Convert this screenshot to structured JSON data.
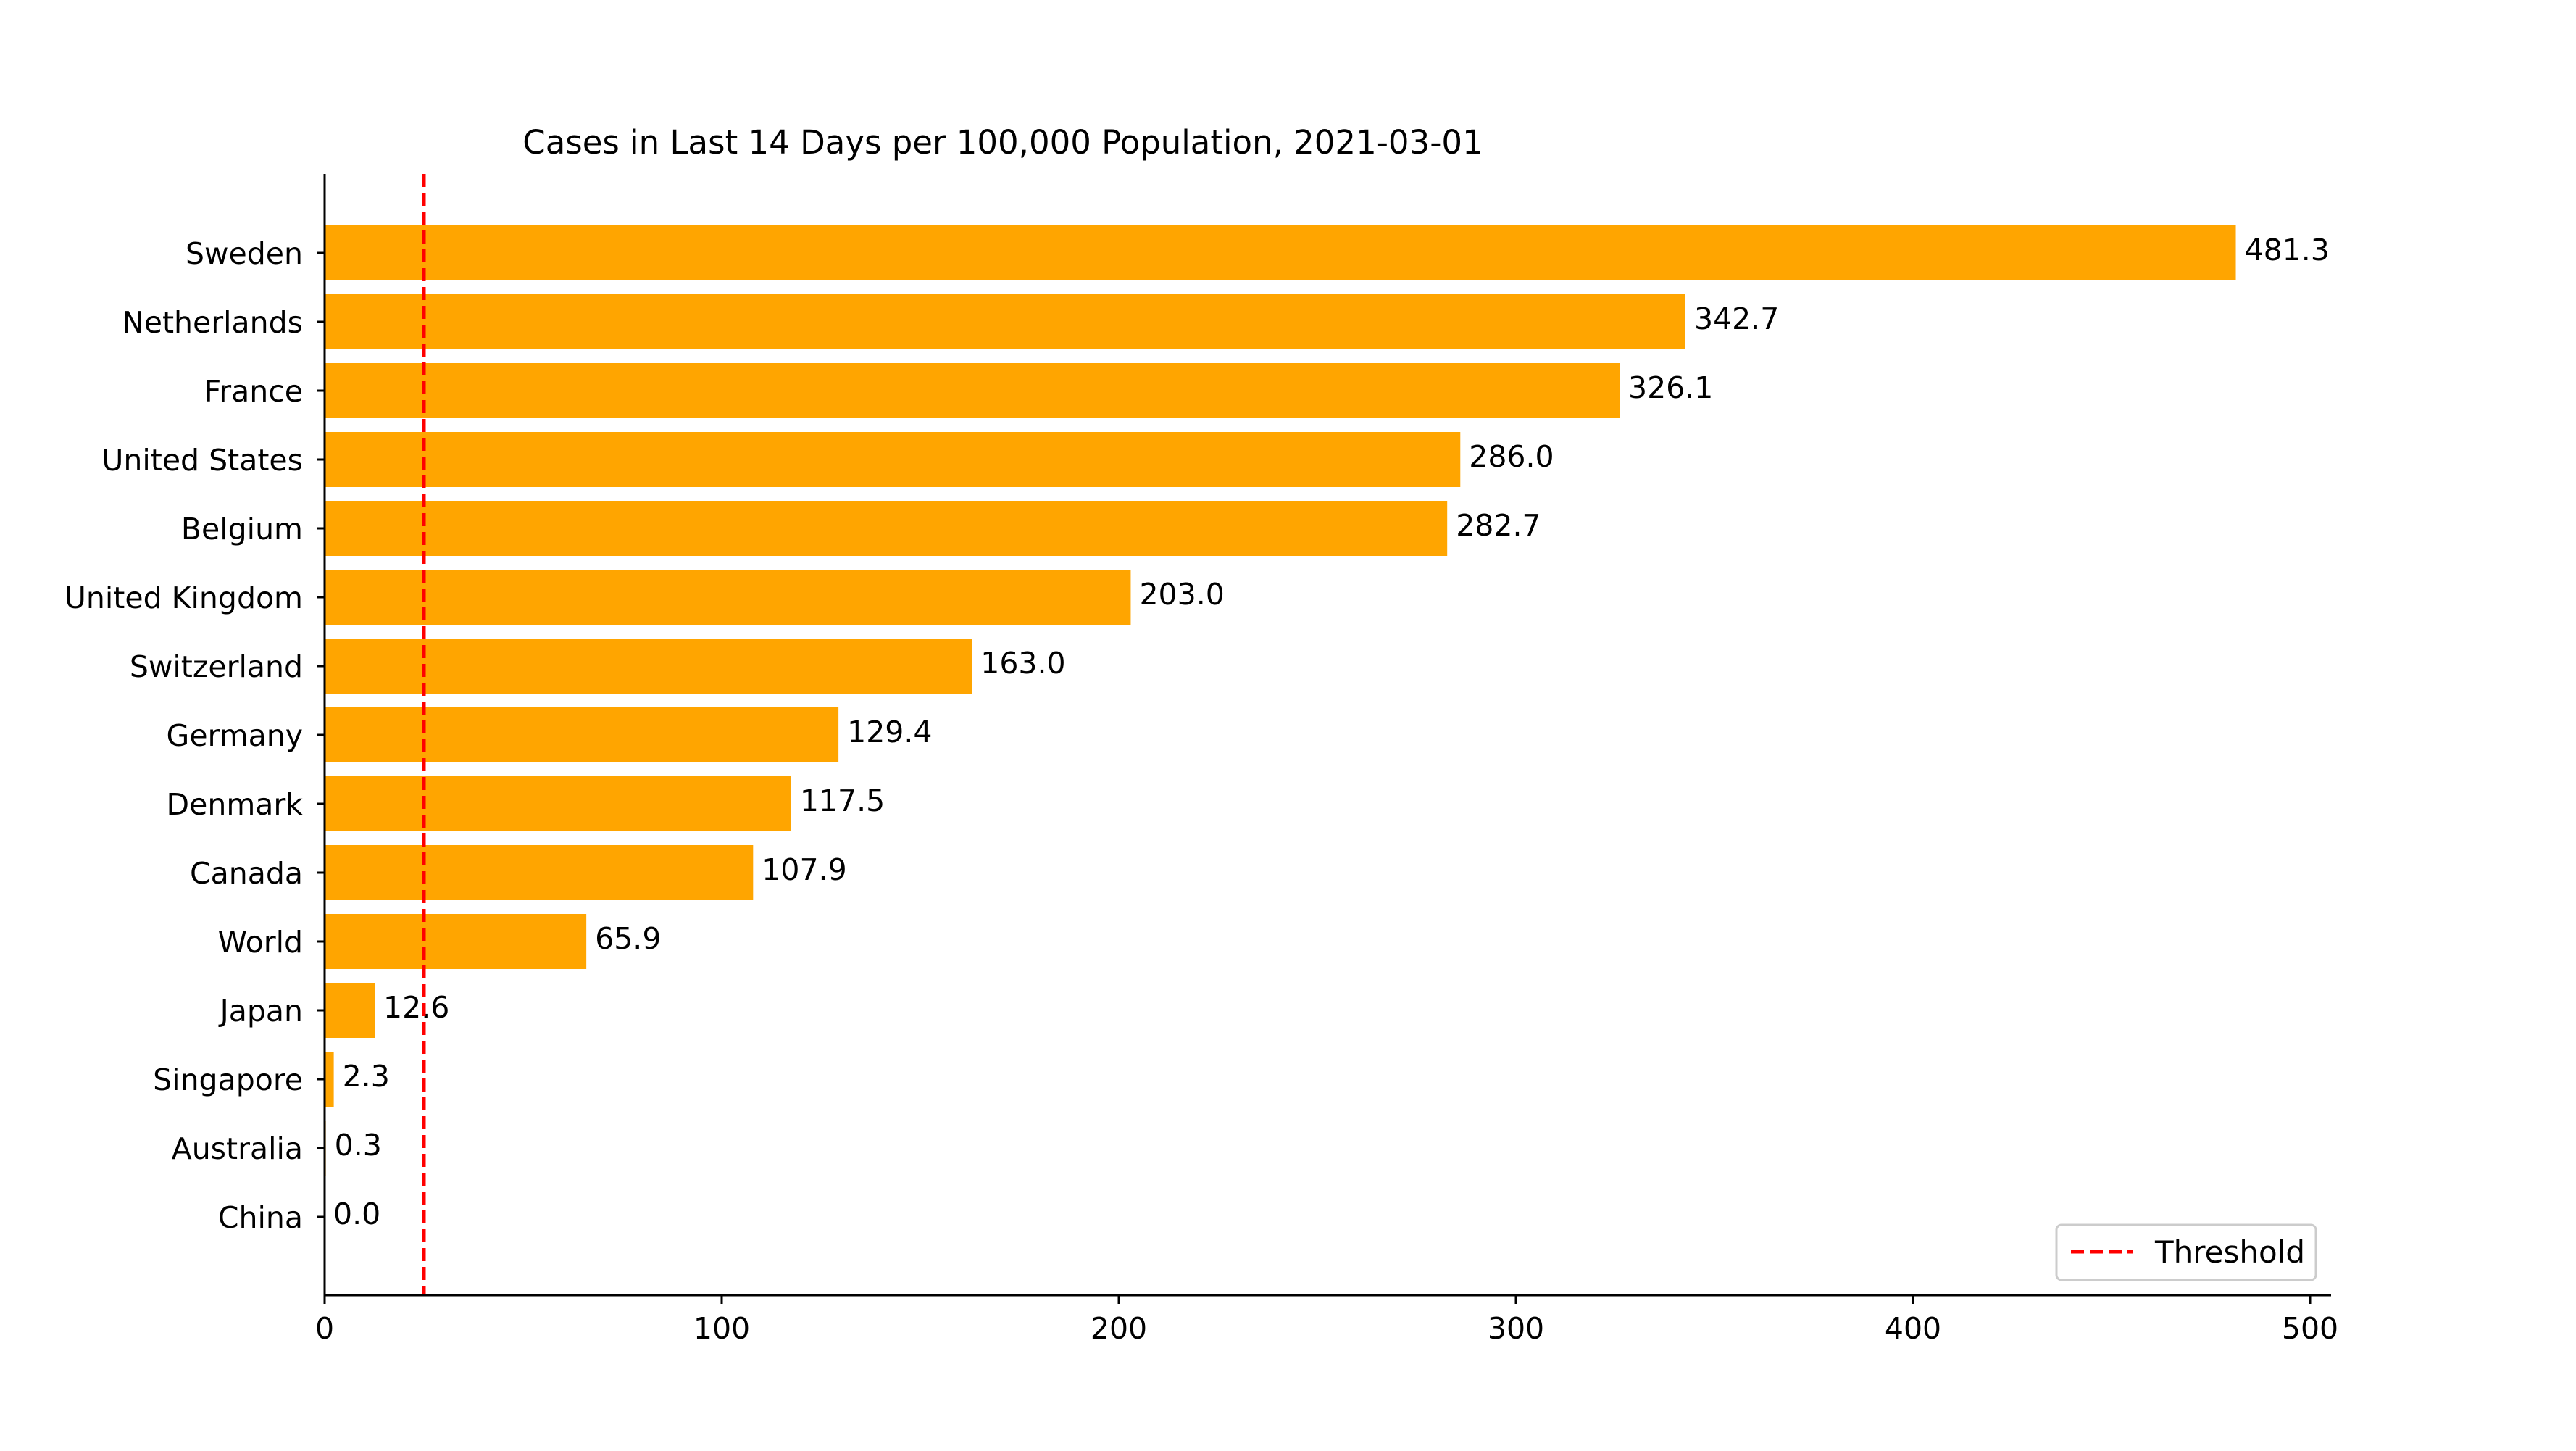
{
  "chart_data": {
    "type": "bar",
    "orientation": "horizontal",
    "title": "Cases in Last 14 Days per 100,000 Population, 2021-03-01",
    "xlabel": "",
    "ylabel": "",
    "xlim": [
      0,
      505
    ],
    "xticks": [
      0,
      100,
      200,
      300,
      400,
      500
    ],
    "grid": false,
    "bar_color": "#FFA500",
    "categories": [
      "Sweden",
      "Netherlands",
      "France",
      "United States",
      "Belgium",
      "United Kingdom",
      "Switzerland",
      "Germany",
      "Denmark",
      "Canada",
      "World",
      "Japan",
      "Singapore",
      "Australia",
      "China"
    ],
    "values": [
      481.3,
      342.7,
      326.1,
      286.0,
      282.7,
      203.0,
      163.0,
      129.4,
      117.5,
      107.9,
      65.9,
      12.6,
      2.3,
      0.3,
      0.0
    ],
    "value_labels": [
      "481.3",
      "342.7",
      "326.1",
      "286.0",
      "282.7",
      "203.0",
      "163.0",
      "129.4",
      "117.5",
      "107.9",
      "65.9",
      "12.6",
      "2.3",
      "0.3",
      "0.0"
    ],
    "threshold": {
      "value": 25,
      "label": "Threshold",
      "color": "#FF0000",
      "style": "dashed"
    },
    "legend": {
      "position": "bottom-right",
      "entries": [
        "Threshold"
      ]
    }
  }
}
